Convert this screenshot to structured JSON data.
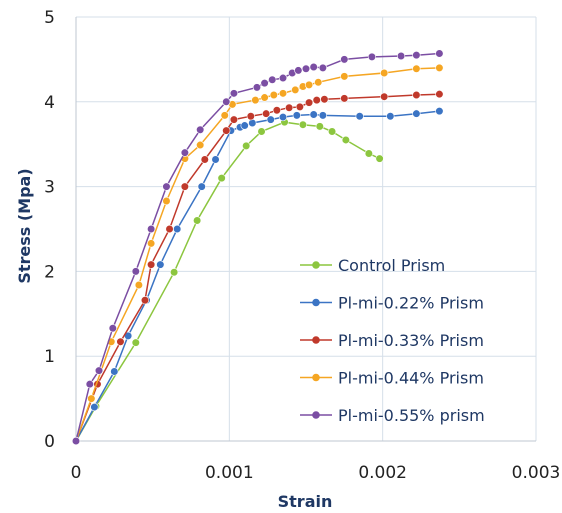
{
  "chart_data": {
    "type": "line",
    "title": "",
    "xlabel": "Strain",
    "ylabel": "Stress (Mpa)",
    "xlim": [
      0,
      0.003
    ],
    "ylim": [
      0,
      5
    ],
    "x_ticks": [
      {
        "value": 0,
        "label": "0"
      },
      {
        "value": 0.001,
        "label": "0.001"
      },
      {
        "value": 0.002,
        "label": "0.002"
      },
      {
        "value": 0.003,
        "label": "0.003"
      }
    ],
    "y_ticks": [
      {
        "value": 0,
        "label": "0"
      },
      {
        "value": 1,
        "label": "1"
      },
      {
        "value": 2,
        "label": "2"
      },
      {
        "value": 3,
        "label": "3"
      },
      {
        "value": 4,
        "label": "4"
      },
      {
        "value": 5,
        "label": "5"
      }
    ],
    "grid": true,
    "legend_position": "bottom-right",
    "series": [
      {
        "name": "Control Prism",
        "color": "#8cc63f",
        "points": [
          [
            0,
            0
          ],
          [
            0.00013,
            0.41
          ],
          [
            0.00039,
            1.16
          ],
          [
            0.00064,
            1.99
          ],
          [
            0.00079,
            2.6
          ],
          [
            0.00095,
            3.1
          ],
          [
            0.00111,
            3.48
          ],
          [
            0.00121,
            3.65
          ],
          [
            0.00136,
            3.76
          ],
          [
            0.00148,
            3.73
          ],
          [
            0.00159,
            3.71
          ],
          [
            0.00167,
            3.65
          ],
          [
            0.00176,
            3.55
          ],
          [
            0.00191,
            3.39
          ],
          [
            0.00198,
            3.33
          ]
        ]
      },
      {
        "name": "Pl-mi-0.22% Prism",
        "color": "#3b74c4",
        "points": [
          [
            0,
            0
          ],
          [
            0.00012,
            0.4
          ],
          [
            0.00025,
            0.82
          ],
          [
            0.00034,
            1.24
          ],
          [
            0.00046,
            1.66
          ],
          [
            0.00055,
            2.08
          ],
          [
            0.00066,
            2.5
          ],
          [
            0.00082,
            3.0
          ],
          [
            0.00091,
            3.32
          ],
          [
            0.00101,
            3.66
          ],
          [
            0.00107,
            3.7
          ],
          [
            0.0011,
            3.72
          ],
          [
            0.00115,
            3.75
          ],
          [
            0.00127,
            3.79
          ],
          [
            0.00135,
            3.82
          ],
          [
            0.00144,
            3.84
          ],
          [
            0.00155,
            3.85
          ],
          [
            0.00161,
            3.84
          ],
          [
            0.00185,
            3.83
          ],
          [
            0.00205,
            3.83
          ],
          [
            0.00222,
            3.86
          ],
          [
            0.00237,
            3.89
          ]
        ]
      },
      {
        "name": "Pl-mi-0.33% Prism",
        "color": "#c0392b",
        "points": [
          [
            0,
            0
          ],
          [
            0.00014,
            0.67
          ],
          [
            0.00029,
            1.17
          ],
          [
            0.00045,
            1.66
          ],
          [
            0.00049,
            2.08
          ],
          [
            0.00061,
            2.5
          ],
          [
            0.00071,
            3.0
          ],
          [
            0.00084,
            3.32
          ],
          [
            0.00098,
            3.66
          ],
          [
            0.00103,
            3.79
          ],
          [
            0.00114,
            3.83
          ],
          [
            0.00124,
            3.86
          ],
          [
            0.00131,
            3.9
          ],
          [
            0.00139,
            3.93
          ],
          [
            0.00146,
            3.94
          ],
          [
            0.00152,
            3.99
          ],
          [
            0.00157,
            4.02
          ],
          [
            0.00162,
            4.03
          ],
          [
            0.00175,
            4.04
          ],
          [
            0.00201,
            4.06
          ],
          [
            0.00222,
            4.08
          ],
          [
            0.00237,
            4.09
          ]
        ]
      },
      {
        "name": "Pl-mi-0.44% Prism",
        "color": "#f5a623",
        "points": [
          [
            0,
            0
          ],
          [
            0.0001,
            0.5
          ],
          [
            0.00023,
            1.17
          ],
          [
            0.00041,
            1.84
          ],
          [
            0.00049,
            2.33
          ],
          [
            0.00059,
            2.83
          ],
          [
            0.00071,
            3.33
          ],
          [
            0.00081,
            3.49
          ],
          [
            0.00097,
            3.84
          ],
          [
            0.00102,
            3.97
          ],
          [
            0.00117,
            4.02
          ],
          [
            0.00123,
            4.05
          ],
          [
            0.00129,
            4.08
          ],
          [
            0.00135,
            4.1
          ],
          [
            0.00143,
            4.14
          ],
          [
            0.00148,
            4.18
          ],
          [
            0.00152,
            4.2
          ],
          [
            0.00158,
            4.23
          ],
          [
            0.00175,
            4.3
          ],
          [
            0.00201,
            4.34
          ],
          [
            0.00222,
            4.39
          ],
          [
            0.00237,
            4.4
          ]
        ]
      },
      {
        "name": "Pl-mi-0.55% prism",
        "color": "#7b4ea3",
        "points": [
          [
            0,
            0
          ],
          [
            9e-05,
            0.67
          ],
          [
            0.00015,
            0.83
          ],
          [
            0.00024,
            1.33
          ],
          [
            0.00039,
            2.0
          ],
          [
            0.00049,
            2.5
          ],
          [
            0.00059,
            3.0
          ],
          [
            0.00071,
            3.4
          ],
          [
            0.00081,
            3.67
          ],
          [
            0.00098,
            4.0
          ],
          [
            0.00103,
            4.1
          ],
          [
            0.00118,
            4.17
          ],
          [
            0.00123,
            4.22
          ],
          [
            0.00128,
            4.26
          ],
          [
            0.00135,
            4.28
          ],
          [
            0.00141,
            4.34
          ],
          [
            0.00145,
            4.37
          ],
          [
            0.0015,
            4.39
          ],
          [
            0.00155,
            4.41
          ],
          [
            0.00161,
            4.4
          ],
          [
            0.00175,
            4.5
          ],
          [
            0.00193,
            4.53
          ],
          [
            0.00212,
            4.54
          ],
          [
            0.00222,
            4.55
          ],
          [
            0.00237,
            4.57
          ]
        ]
      }
    ]
  }
}
